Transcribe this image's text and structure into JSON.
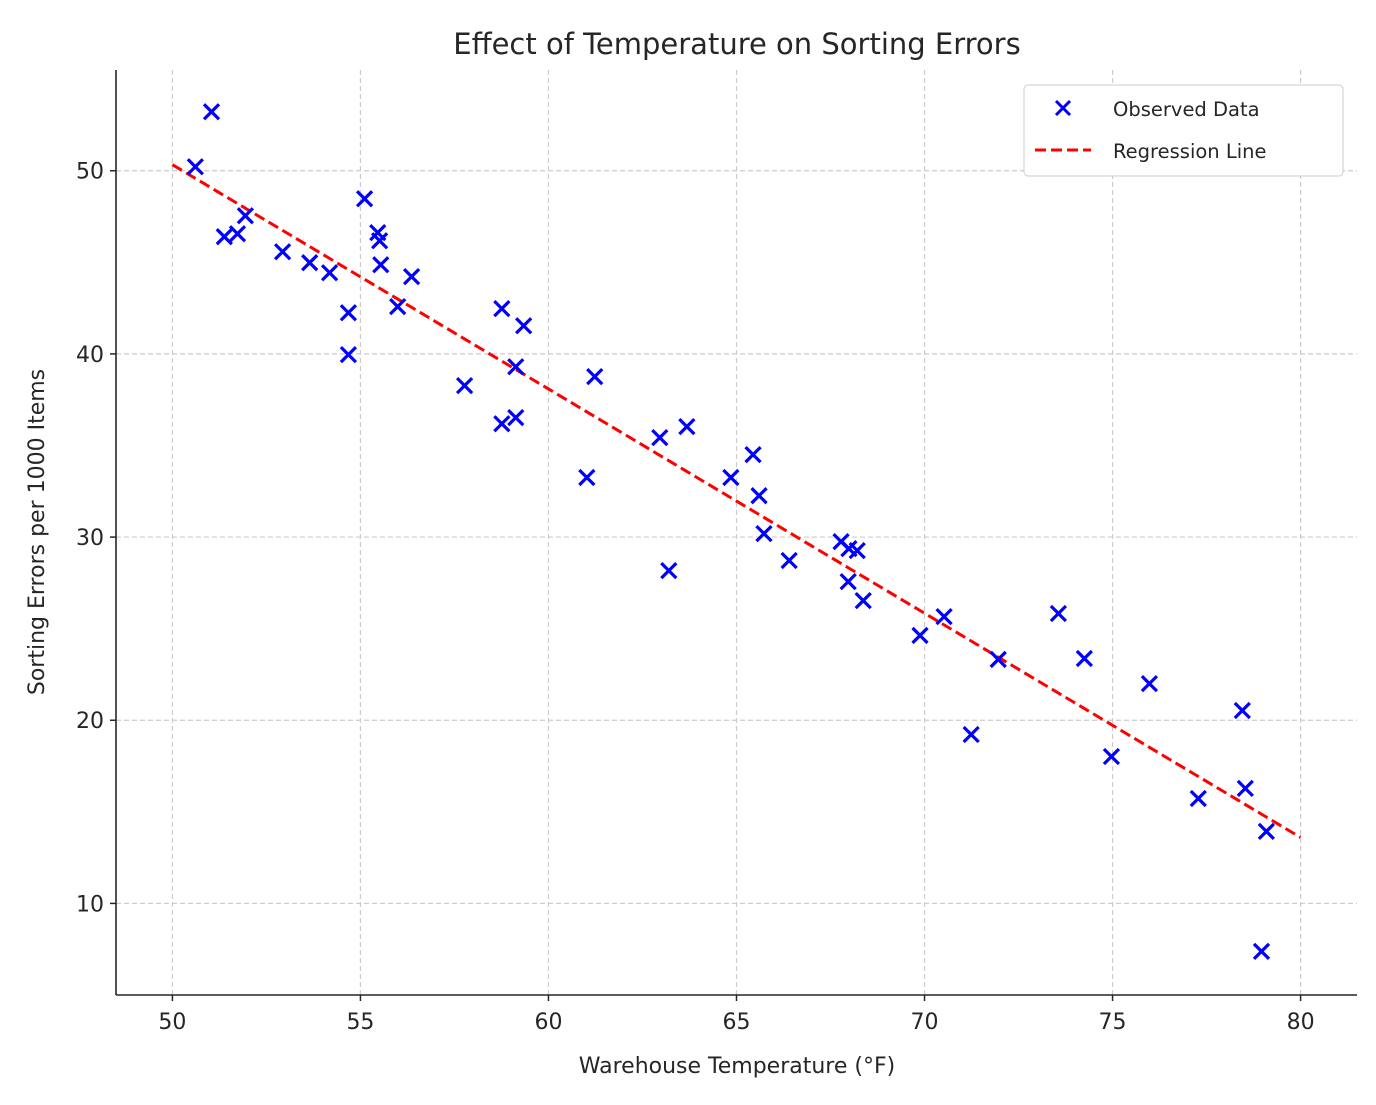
{
  "chart_data": {
    "type": "scatter",
    "title": "Effect of Temperature on Sorting Errors",
    "xlabel": "Warehouse Temperature (°F)",
    "ylabel": "Sorting Errors per 1000 Items",
    "xlim": [
      48.5,
      81.5
    ],
    "ylim": [
      5.0,
      55.5
    ],
    "xticks": [
      50,
      55,
      60,
      65,
      70,
      75,
      80
    ],
    "yticks": [
      10,
      20,
      30,
      40,
      50
    ],
    "grid": true,
    "legend_position": "top-right",
    "series": [
      {
        "name": "Observed Data",
        "type": "scatter",
        "marker": "x",
        "color": "#0000ff",
        "points": [
          [
            50.61,
            50.22
          ],
          [
            51.04,
            53.22
          ],
          [
            51.38,
            46.4
          ],
          [
            51.73,
            46.56
          ],
          [
            51.94,
            47.54
          ],
          [
            52.93,
            45.58
          ],
          [
            53.65,
            44.98
          ],
          [
            54.18,
            44.43
          ],
          [
            54.68,
            42.25
          ],
          [
            54.68,
            39.96
          ],
          [
            55.11,
            48.47
          ],
          [
            55.46,
            46.62
          ],
          [
            55.51,
            46.18
          ],
          [
            55.54,
            44.87
          ],
          [
            55.99,
            42.58
          ],
          [
            56.36,
            44.22
          ],
          [
            57.77,
            38.27
          ],
          [
            58.76,
            42.47
          ],
          [
            58.76,
            36.19
          ],
          [
            59.13,
            36.52
          ],
          [
            59.13,
            39.3
          ],
          [
            59.34,
            41.54
          ],
          [
            61.02,
            33.25
          ],
          [
            61.23,
            38.76
          ],
          [
            62.96,
            35.43
          ],
          [
            63.2,
            28.17
          ],
          [
            63.68,
            36.03
          ],
          [
            64.85,
            33.25
          ],
          [
            65.44,
            34.5
          ],
          [
            65.6,
            32.26
          ],
          [
            65.73,
            30.19
          ],
          [
            66.4,
            28.72
          ],
          [
            67.78,
            29.75
          ],
          [
            67.99,
            29.37
          ],
          [
            68.21,
            29.26
          ],
          [
            67.97,
            27.57
          ],
          [
            68.37,
            26.53
          ],
          [
            69.88,
            24.63
          ],
          [
            70.52,
            25.66
          ],
          [
            71.24,
            19.22
          ],
          [
            71.96,
            23.32
          ],
          [
            73.56,
            25.83
          ],
          [
            74.25,
            23.37
          ],
          [
            74.97,
            18.02
          ],
          [
            75.98,
            22.0
          ],
          [
            77.28,
            15.73
          ],
          [
            78.45,
            20.53
          ],
          [
            78.53,
            16.28
          ],
          [
            79.09,
            13.93
          ],
          [
            78.96,
            7.38
          ]
        ]
      },
      {
        "name": "Regression Line",
        "type": "line",
        "style": "dashed",
        "color": "#ff0000",
        "points": [
          [
            50,
            50.33
          ],
          [
            80,
            13.6
          ]
        ]
      }
    ]
  }
}
